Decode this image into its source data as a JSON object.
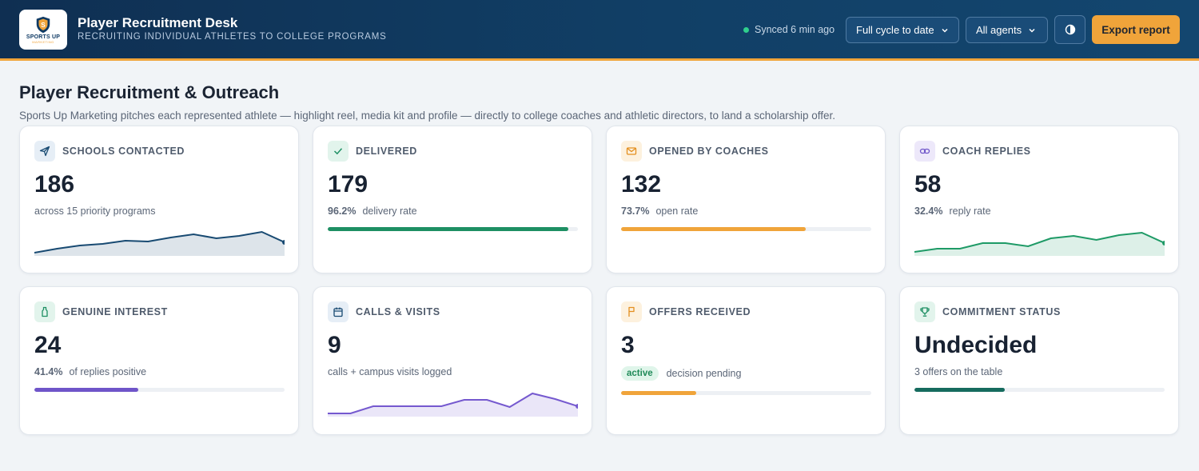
{
  "header": {
    "logo_text": "SPORTS UP",
    "logo_sub": "MARKETING",
    "title": "Player Recruitment Desk",
    "subtitle": "RECRUITING INDIVIDUAL ATHLETES TO COLLEGE PROGRAMS",
    "sync_status": "Synced 6 min ago",
    "period_select": "Full cycle to date",
    "agent_select": "All agents",
    "export_label": "Export report"
  },
  "page": {
    "title": "Player Recruitment & Outreach",
    "description": "Sports Up Marketing pitches each represented athlete — highlight reel, media kit and profile — directly to college coaches and athletic directors, to land a scholarship offer."
  },
  "cards": [
    {
      "label": "SCHOOLS CONTACTED",
      "value": "186",
      "sub": "across 15 priority programs",
      "icon": "send-icon",
      "color": "#184a72",
      "spark": [
        3,
        8,
        12,
        14,
        18,
        17,
        22,
        26,
        21,
        24,
        29,
        16
      ]
    },
    {
      "label": "DELIVERED",
      "value": "179",
      "pct": "96.2%",
      "sub": "delivery rate",
      "icon": "check-icon",
      "color": "#1e8f63",
      "progress": 0.962
    },
    {
      "label": "OPENED BY COACHES",
      "value": "132",
      "pct": "73.7%",
      "sub": "open rate",
      "icon": "mail-icon",
      "color": "#f0a43a",
      "progress": 0.737
    },
    {
      "label": "COACH REPLIES",
      "value": "58",
      "pct": "32.4%",
      "sub": "reply rate",
      "icon": "link-icon",
      "color": "#1e9a66",
      "spark": [
        4,
        8,
        8,
        15,
        15,
        11,
        21,
        24,
        19,
        25,
        28,
        15
      ]
    },
    {
      "label": "GENUINE INTEREST",
      "value": "24",
      "pct": "41.4%",
      "sub": "of replies positive",
      "icon": "bottle-icon",
      "color": "#6f55c9",
      "progress": 0.414
    },
    {
      "label": "CALLS & VISITS",
      "value": "9",
      "sub": "calls + campus visits logged",
      "icon": "calendar-icon",
      "color": "#7559cf",
      "spark": [
        3,
        3,
        12,
        12,
        12,
        12,
        20,
        20,
        11,
        28,
        21,
        12
      ]
    },
    {
      "label": "OFFERS RECEIVED",
      "value": "3",
      "badge": "active",
      "sub": "decision pending",
      "icon": "flag-icon",
      "color": "#f0a43a",
      "progress": 0.3
    },
    {
      "label": "COMMITMENT STATUS",
      "value": "Undecided",
      "sub": "3 offers on the table",
      "icon": "trophy-icon",
      "color": "#166b5e",
      "progress": 0.36
    }
  ]
}
